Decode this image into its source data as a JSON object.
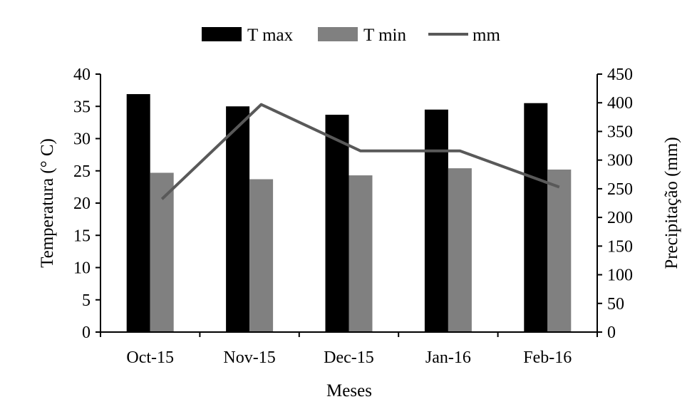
{
  "colors": {
    "tmax": "#000000",
    "tmin": "#808080",
    "line": "#595959",
    "axis": "#000000"
  },
  "chart_data": {
    "type": "bar",
    "title": "",
    "categories": [
      "Oct-15",
      "Nov-15",
      "Dec-15",
      "Jan-16",
      "Feb-16"
    ],
    "series": [
      {
        "name": "T max",
        "type": "bar",
        "axis": "left",
        "values": [
          36.9,
          35.0,
          33.7,
          34.5,
          35.5
        ]
      },
      {
        "name": "T min",
        "type": "bar",
        "axis": "left",
        "values": [
          24.7,
          23.7,
          24.3,
          25.4,
          25.2
        ]
      },
      {
        "name": "mm",
        "type": "line",
        "axis": "right",
        "values": [
          232,
          397,
          316,
          316,
          253
        ]
      }
    ],
    "xlabel": "Meses",
    "ylabel": "Temperatura  (° C)",
    "y2label": "Precipitação  (mm)",
    "ylim": [
      0,
      40
    ],
    "y2lim": [
      0,
      450
    ],
    "yticks": [
      "0",
      "5",
      "10",
      "15",
      "20",
      "25",
      "30",
      "35",
      "40"
    ],
    "y2ticks": [
      "0",
      "50",
      "100",
      "150",
      "200",
      "250",
      "300",
      "350",
      "400",
      "450"
    ],
    "grid": false,
    "legend_position": "top"
  }
}
